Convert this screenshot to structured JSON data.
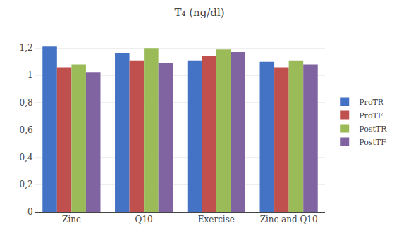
{
  "chart_data": {
    "type": "bar",
    "title": "T₄ (ng/dl)",
    "categories": [
      "Zinc",
      "Q10",
      "Exercise",
      "Zinc and Q10"
    ],
    "series": [
      {
        "name": "ProTR",
        "color": "#4472C4",
        "values": [
          1.21,
          1.16,
          1.11,
          1.1
        ]
      },
      {
        "name": "ProTF",
        "color": "#C0504D",
        "values": [
          1.06,
          1.11,
          1.14,
          1.06
        ]
      },
      {
        "name": "PostTR",
        "color": "#9BBB59",
        "values": [
          1.08,
          1.2,
          1.19,
          1.11
        ]
      },
      {
        "name": "PostTF",
        "color": "#8064A2",
        "values": [
          1.02,
          1.09,
          1.17,
          1.08
        ]
      }
    ],
    "ylim": [
      0,
      1.32
    ],
    "yticks": [
      0,
      {
        "value": 0.2,
        "label": "0,2"
      },
      {
        "value": 0.4,
        "label": "0,4"
      },
      {
        "value": 0.6,
        "label": "0,6"
      },
      {
        "value": 0.8,
        "label": "0,8"
      },
      1,
      {
        "value": 1.2,
        "label": "1,2"
      }
    ],
    "grid": true,
    "legend": "right"
  }
}
